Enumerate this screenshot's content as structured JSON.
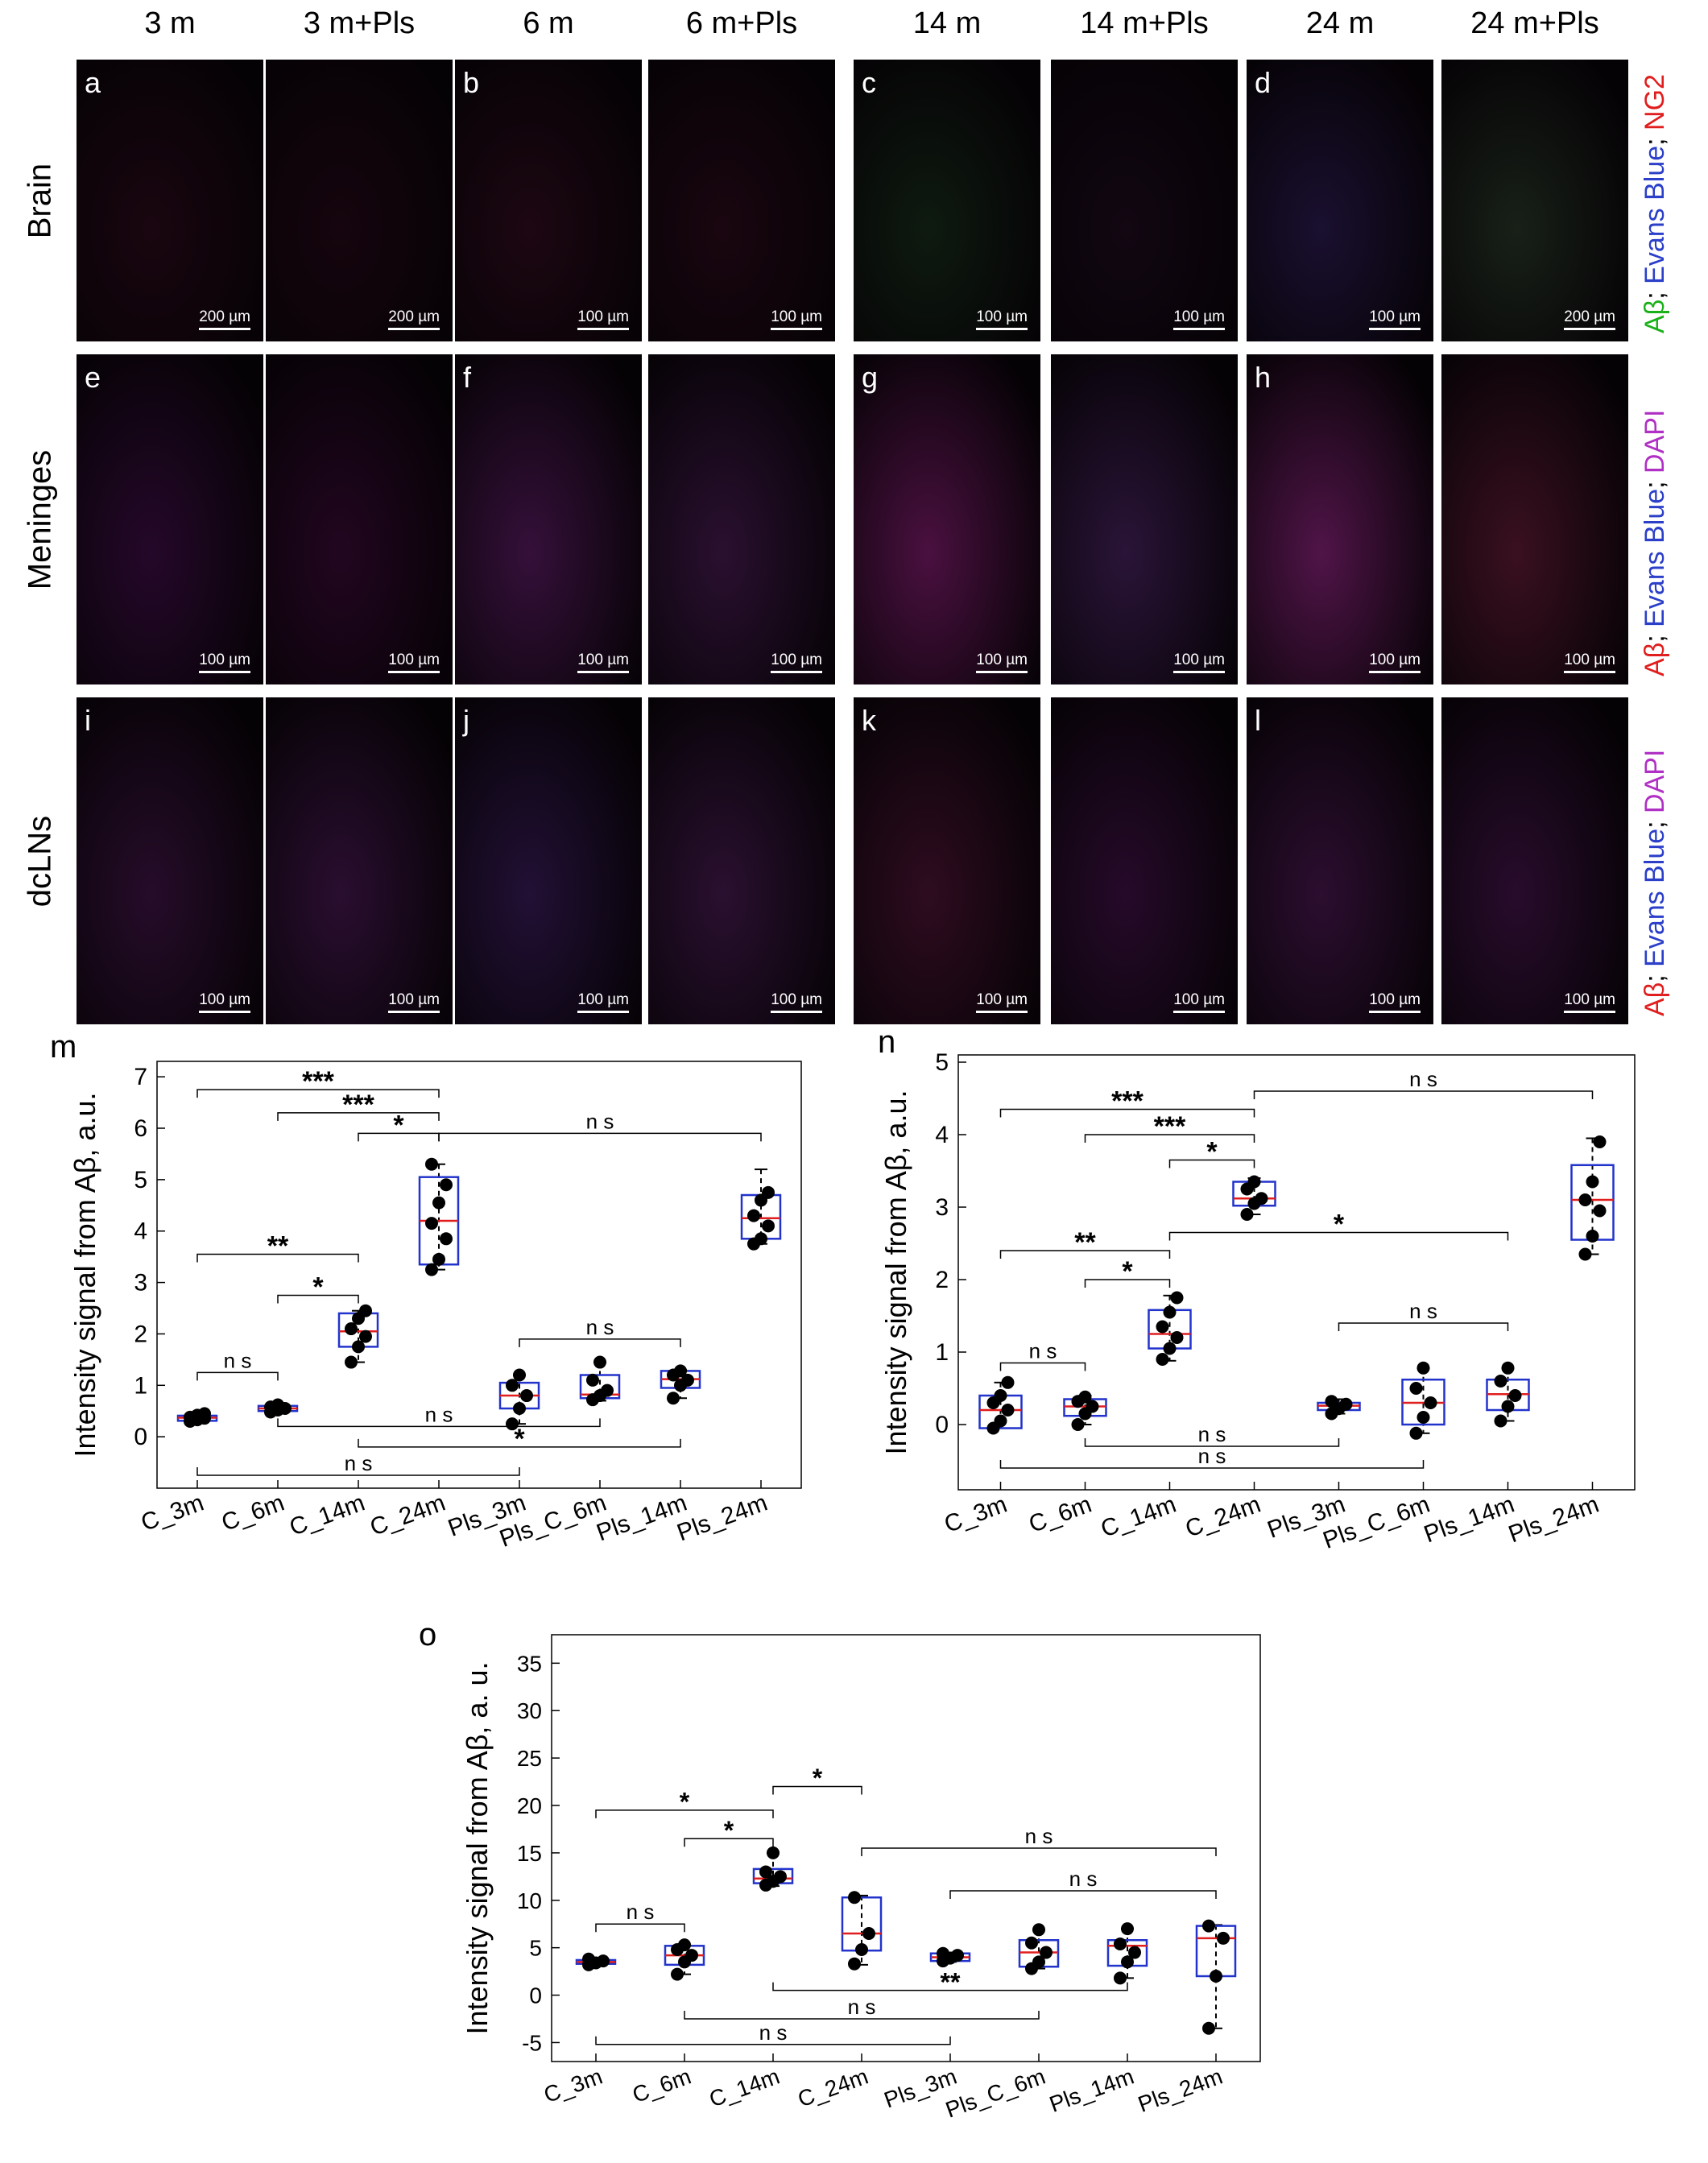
{
  "columns": [
    "3 m",
    "3 m+Pls",
    "6 m",
    "6 m+Pls",
    "14 m",
    "14 m+Pls",
    "24 m",
    "24 m+Pls"
  ],
  "rows": [
    {
      "label": "Brain",
      "letters": [
        "a",
        "b",
        "c",
        "d"
      ],
      "scales": [
        "200 µm",
        "200 µm",
        "100 µm",
        "100 µm",
        "100 µm",
        "100 µm",
        "100 µm",
        "200 µm"
      ]
    },
    {
      "label": "Meninges",
      "letters": [
        "e",
        "f",
        "g",
        "h"
      ],
      "scales": [
        "100 µm",
        "100 µm",
        "100 µm",
        "100 µm",
        "100 µm",
        "100 µm",
        "100 µm",
        "100 µm"
      ]
    },
    {
      "label": "dcLNs",
      "letters": [
        "i",
        "j",
        "k",
        "l"
      ],
      "scales": [
        "100 µm",
        "100 µm",
        "100 µm",
        "100 µm",
        "100 µm",
        "100 µm",
        "100 µm",
        "100 µm"
      ]
    }
  ],
  "stain_labels": [
    {
      "parts": [
        {
          "t": "Aβ",
          "c": "#19b019"
        },
        {
          "t": "; ",
          "c": "#000000"
        },
        {
          "t": "Evans Blue",
          "c": "#2b3fc9"
        },
        {
          "t": "; ",
          "c": "#000000"
        },
        {
          "t": "NG2",
          "c": "#e01e1e"
        }
      ]
    },
    {
      "parts": [
        {
          "t": "Aβ",
          "c": "#e01e1e"
        },
        {
          "t": "; ",
          "c": "#000000"
        },
        {
          "t": "Evans Blue",
          "c": "#2b3fc9"
        },
        {
          "t": "; ",
          "c": "#000000"
        },
        {
          "t": "DAPI",
          "c": "#b02fc4"
        }
      ]
    },
    {
      "parts": [
        {
          "t": "Aβ",
          "c": "#e01e1e"
        },
        {
          "t": "; ",
          "c": "#000000"
        },
        {
          "t": "Evans Blue",
          "c": "#2b3fc9"
        },
        {
          "t": "; ",
          "c": "#000000"
        },
        {
          "t": "DAPI",
          "c": "#b02fc4"
        }
      ]
    }
  ],
  "colors": {
    "box": "#2233cc",
    "median": "#e01e1e",
    "dot": "#000000"
  },
  "chart_data": [
    {
      "panel": "m",
      "type": "box",
      "ylabel": "Intensity signal from Aβ, a.u.",
      "ylim": [
        -1,
        7.3
      ],
      "yticks": [
        0,
        1,
        2,
        3,
        4,
        5,
        6,
        7
      ],
      "categories": [
        "C_3m",
        "C_6m",
        "C_14m",
        "C_24m",
        "Pls_3m",
        "Pls_C_6m",
        "Pls_14m",
        "Pls_24m"
      ],
      "boxes": [
        {
          "min": 0.28,
          "q1": 0.31,
          "median": 0.37,
          "q3": 0.41,
          "max": 0.45,
          "points": [
            0.3,
            0.33,
            0.36,
            0.38,
            0.42,
            0.45
          ]
        },
        {
          "min": 0.47,
          "q1": 0.5,
          "median": 0.55,
          "q3": 0.6,
          "max": 0.63,
          "points": [
            0.48,
            0.52,
            0.55,
            0.58,
            0.62
          ]
        },
        {
          "min": 1.45,
          "q1": 1.75,
          "median": 2.05,
          "q3": 2.4,
          "max": 2.45,
          "points": [
            1.45,
            1.75,
            1.95,
            2.1,
            2.3,
            2.45
          ]
        },
        {
          "min": 3.25,
          "q1": 3.35,
          "median": 4.2,
          "q3": 5.05,
          "max": 5.3,
          "points": [
            3.25,
            3.45,
            3.85,
            4.15,
            4.55,
            4.9,
            5.3
          ]
        },
        {
          "min": 0.25,
          "q1": 0.55,
          "median": 0.8,
          "q3": 1.05,
          "max": 1.2,
          "points": [
            0.25,
            0.55,
            0.8,
            1.0,
            1.2
          ]
        },
        {
          "min": 0.7,
          "q1": 0.75,
          "median": 0.82,
          "q3": 1.2,
          "max": 1.45,
          "points": [
            0.72,
            0.8,
            0.9,
            1.1,
            1.45
          ]
        },
        {
          "min": 0.75,
          "q1": 0.95,
          "median": 1.12,
          "q3": 1.28,
          "max": 1.3,
          "points": [
            0.75,
            1.0,
            1.1,
            1.2,
            1.28
          ]
        },
        {
          "min": 3.75,
          "q1": 3.85,
          "median": 4.25,
          "q3": 4.7,
          "max": 5.2,
          "points": [
            3.75,
            3.85,
            4.1,
            4.3,
            4.6,
            4.75
          ]
        }
      ],
      "brackets": [
        {
          "from": 0,
          "to": 3,
          "y": 6.75,
          "label": "***"
        },
        {
          "from": 1,
          "to": 3,
          "y": 6.3,
          "label": "***"
        },
        {
          "from": 2,
          "to": 3,
          "y": 5.9,
          "label": "*"
        },
        {
          "from": 3,
          "to": 7,
          "y": 5.9,
          "label": "n s"
        },
        {
          "from": 0,
          "to": 2,
          "y": 3.55,
          "label": "**"
        },
        {
          "from": 1,
          "to": 2,
          "y": 2.75,
          "label": "*"
        },
        {
          "from": 4,
          "to": 6,
          "y": 1.9,
          "label": "n s"
        },
        {
          "from": 0,
          "to": 1,
          "y": 1.25,
          "label": "n s"
        },
        {
          "from": 1,
          "to": 5,
          "y": 0.2,
          "label": "n s",
          "below": true
        },
        {
          "from": 2,
          "to": 6,
          "y": -0.2,
          "label": "*",
          "below": true
        },
        {
          "from": 0,
          "to": 4,
          "y": -0.75,
          "label": "n s",
          "below": true
        }
      ]
    },
    {
      "panel": "n",
      "type": "box",
      "ylabel": "Intensity signal from Aβ, a.u.",
      "ylim": [
        -0.9,
        5.1
      ],
      "yticks": [
        0,
        1,
        2,
        3,
        4,
        5
      ],
      "categories": [
        "C_3m",
        "C_6m",
        "C_14m",
        "C_24m",
        "Pls_3m",
        "Pls_C_6m",
        "Pls_14m",
        "Pls_24m"
      ],
      "boxes": [
        {
          "min": -0.05,
          "q1": -0.05,
          "median": 0.2,
          "q3": 0.4,
          "max": 0.58,
          "points": [
            -0.05,
            0.05,
            0.2,
            0.3,
            0.4,
            0.58
          ]
        },
        {
          "min": 0.0,
          "q1": 0.12,
          "median": 0.25,
          "q3": 0.35,
          "max": 0.4,
          "points": [
            0.0,
            0.15,
            0.25,
            0.32,
            0.38
          ]
        },
        {
          "min": 0.88,
          "q1": 1.05,
          "median": 1.25,
          "q3": 1.58,
          "max": 1.78,
          "points": [
            0.9,
            1.05,
            1.2,
            1.35,
            1.55,
            1.75
          ]
        },
        {
          "min": 2.9,
          "q1": 3.02,
          "median": 3.12,
          "q3": 3.35,
          "max": 3.4,
          "points": [
            2.9,
            3.05,
            3.12,
            3.25,
            3.35
          ]
        },
        {
          "min": 0.15,
          "q1": 0.2,
          "median": 0.26,
          "q3": 0.3,
          "max": 0.35,
          "points": [
            0.15,
            0.22,
            0.28,
            0.32
          ]
        },
        {
          "min": -0.12,
          "q1": 0.0,
          "median": 0.3,
          "q3": 0.62,
          "max": 0.78,
          "points": [
            -0.12,
            0.1,
            0.3,
            0.5,
            0.78
          ]
        },
        {
          "min": 0.05,
          "q1": 0.2,
          "median": 0.42,
          "q3": 0.62,
          "max": 0.78,
          "points": [
            0.05,
            0.25,
            0.4,
            0.6,
            0.78
          ]
        },
        {
          "min": 2.35,
          "q1": 2.55,
          "median": 3.1,
          "q3": 3.58,
          "max": 3.95,
          "points": [
            2.35,
            2.6,
            2.95,
            3.1,
            3.35,
            3.9
          ]
        }
      ],
      "brackets": [
        {
          "from": 0,
          "to": 3,
          "y": 4.35,
          "label": "***"
        },
        {
          "from": 3,
          "to": 7,
          "y": 4.6,
          "label": "n s"
        },
        {
          "from": 1,
          "to": 3,
          "y": 4.0,
          "label": "***"
        },
        {
          "from": 2,
          "to": 3,
          "y": 3.65,
          "label": "*"
        },
        {
          "from": 2,
          "to": 6,
          "y": 2.65,
          "label": "*"
        },
        {
          "from": 0,
          "to": 2,
          "y": 2.4,
          "label": "**"
        },
        {
          "from": 1,
          "to": 2,
          "y": 2.0,
          "label": "*"
        },
        {
          "from": 4,
          "to": 6,
          "y": 1.4,
          "label": "n s"
        },
        {
          "from": 0,
          "to": 1,
          "y": 0.85,
          "label": "n s"
        },
        {
          "from": 1,
          "to": 4,
          "y": -0.3,
          "label": "n s",
          "below": true
        },
        {
          "from": 0,
          "to": 5,
          "y": -0.6,
          "label": "n s",
          "below": true
        }
      ]
    },
    {
      "panel": "o",
      "type": "box",
      "ylabel": "Intensity signal from Aβ, a. u.",
      "ylim": [
        -7,
        38
      ],
      "yticks": [
        -5,
        0,
        5,
        10,
        15,
        20,
        25,
        30,
        35
      ],
      "categories": [
        "C_3m",
        "C_6m",
        "C_14m",
        "C_24m",
        "Pls_3m",
        "Pls_C_6m",
        "Pls_14m",
        "Pls_24m"
      ],
      "boxes": [
        {
          "min": 3.2,
          "q1": 3.3,
          "median": 3.5,
          "q3": 3.7,
          "max": 3.8,
          "points": [
            3.2,
            3.4,
            3.6,
            3.8
          ]
        },
        {
          "min": 2.2,
          "q1": 3.2,
          "median": 4.2,
          "q3": 5.2,
          "max": 5.3,
          "points": [
            2.2,
            3.5,
            4.2,
            4.8,
            5.3
          ]
        },
        {
          "min": 11.5,
          "q1": 11.8,
          "median": 12.3,
          "q3": 13.3,
          "max": 15.0,
          "points": [
            11.6,
            12.0,
            12.5,
            13.0,
            15.0
          ]
        },
        {
          "min": 3.2,
          "q1": 4.7,
          "median": 6.5,
          "q3": 10.3,
          "max": 10.5,
          "points": [
            3.3,
            4.8,
            6.5,
            10.3
          ]
        },
        {
          "min": 3.5,
          "q1": 3.6,
          "median": 4.0,
          "q3": 4.4,
          "max": 4.5,
          "points": [
            3.6,
            3.9,
            4.2,
            4.4
          ]
        },
        {
          "min": 2.8,
          "q1": 3.0,
          "median": 4.5,
          "q3": 5.8,
          "max": 6.9,
          "points": [
            2.8,
            3.5,
            4.5,
            5.5,
            6.9
          ]
        },
        {
          "min": 1.8,
          "q1": 3.1,
          "median": 5.2,
          "q3": 5.8,
          "max": 7.0,
          "points": [
            1.8,
            3.5,
            4.5,
            5.4,
            7.0
          ]
        },
        {
          "min": -3.5,
          "q1": 2.0,
          "median": 6.0,
          "q3": 7.3,
          "max": 7.4,
          "points": [
            -3.5,
            2.0,
            6.0,
            7.3
          ]
        }
      ],
      "brackets": [
        {
          "from": 0,
          "to": 2,
          "y": 19.5,
          "label": "*"
        },
        {
          "from": 2,
          "to": 3,
          "y": 22.0,
          "label": "*"
        },
        {
          "from": 1,
          "to": 2,
          "y": 16.5,
          "label": "*"
        },
        {
          "from": 3,
          "to": 7,
          "y": 15.5,
          "label": "n s"
        },
        {
          "from": 4,
          "to": 7,
          "y": 11.0,
          "label": "n s"
        },
        {
          "from": 0,
          "to": 1,
          "y": 7.5,
          "label": "n s"
        },
        {
          "from": 2,
          "to": 6,
          "y": 0.5,
          "label": "**",
          "below": true
        },
        {
          "from": 1,
          "to": 5,
          "y": -2.5,
          "label": "n s",
          "below": true
        },
        {
          "from": 0,
          "to": 4,
          "y": -5.2,
          "label": "n s",
          "below": true
        }
      ]
    }
  ]
}
